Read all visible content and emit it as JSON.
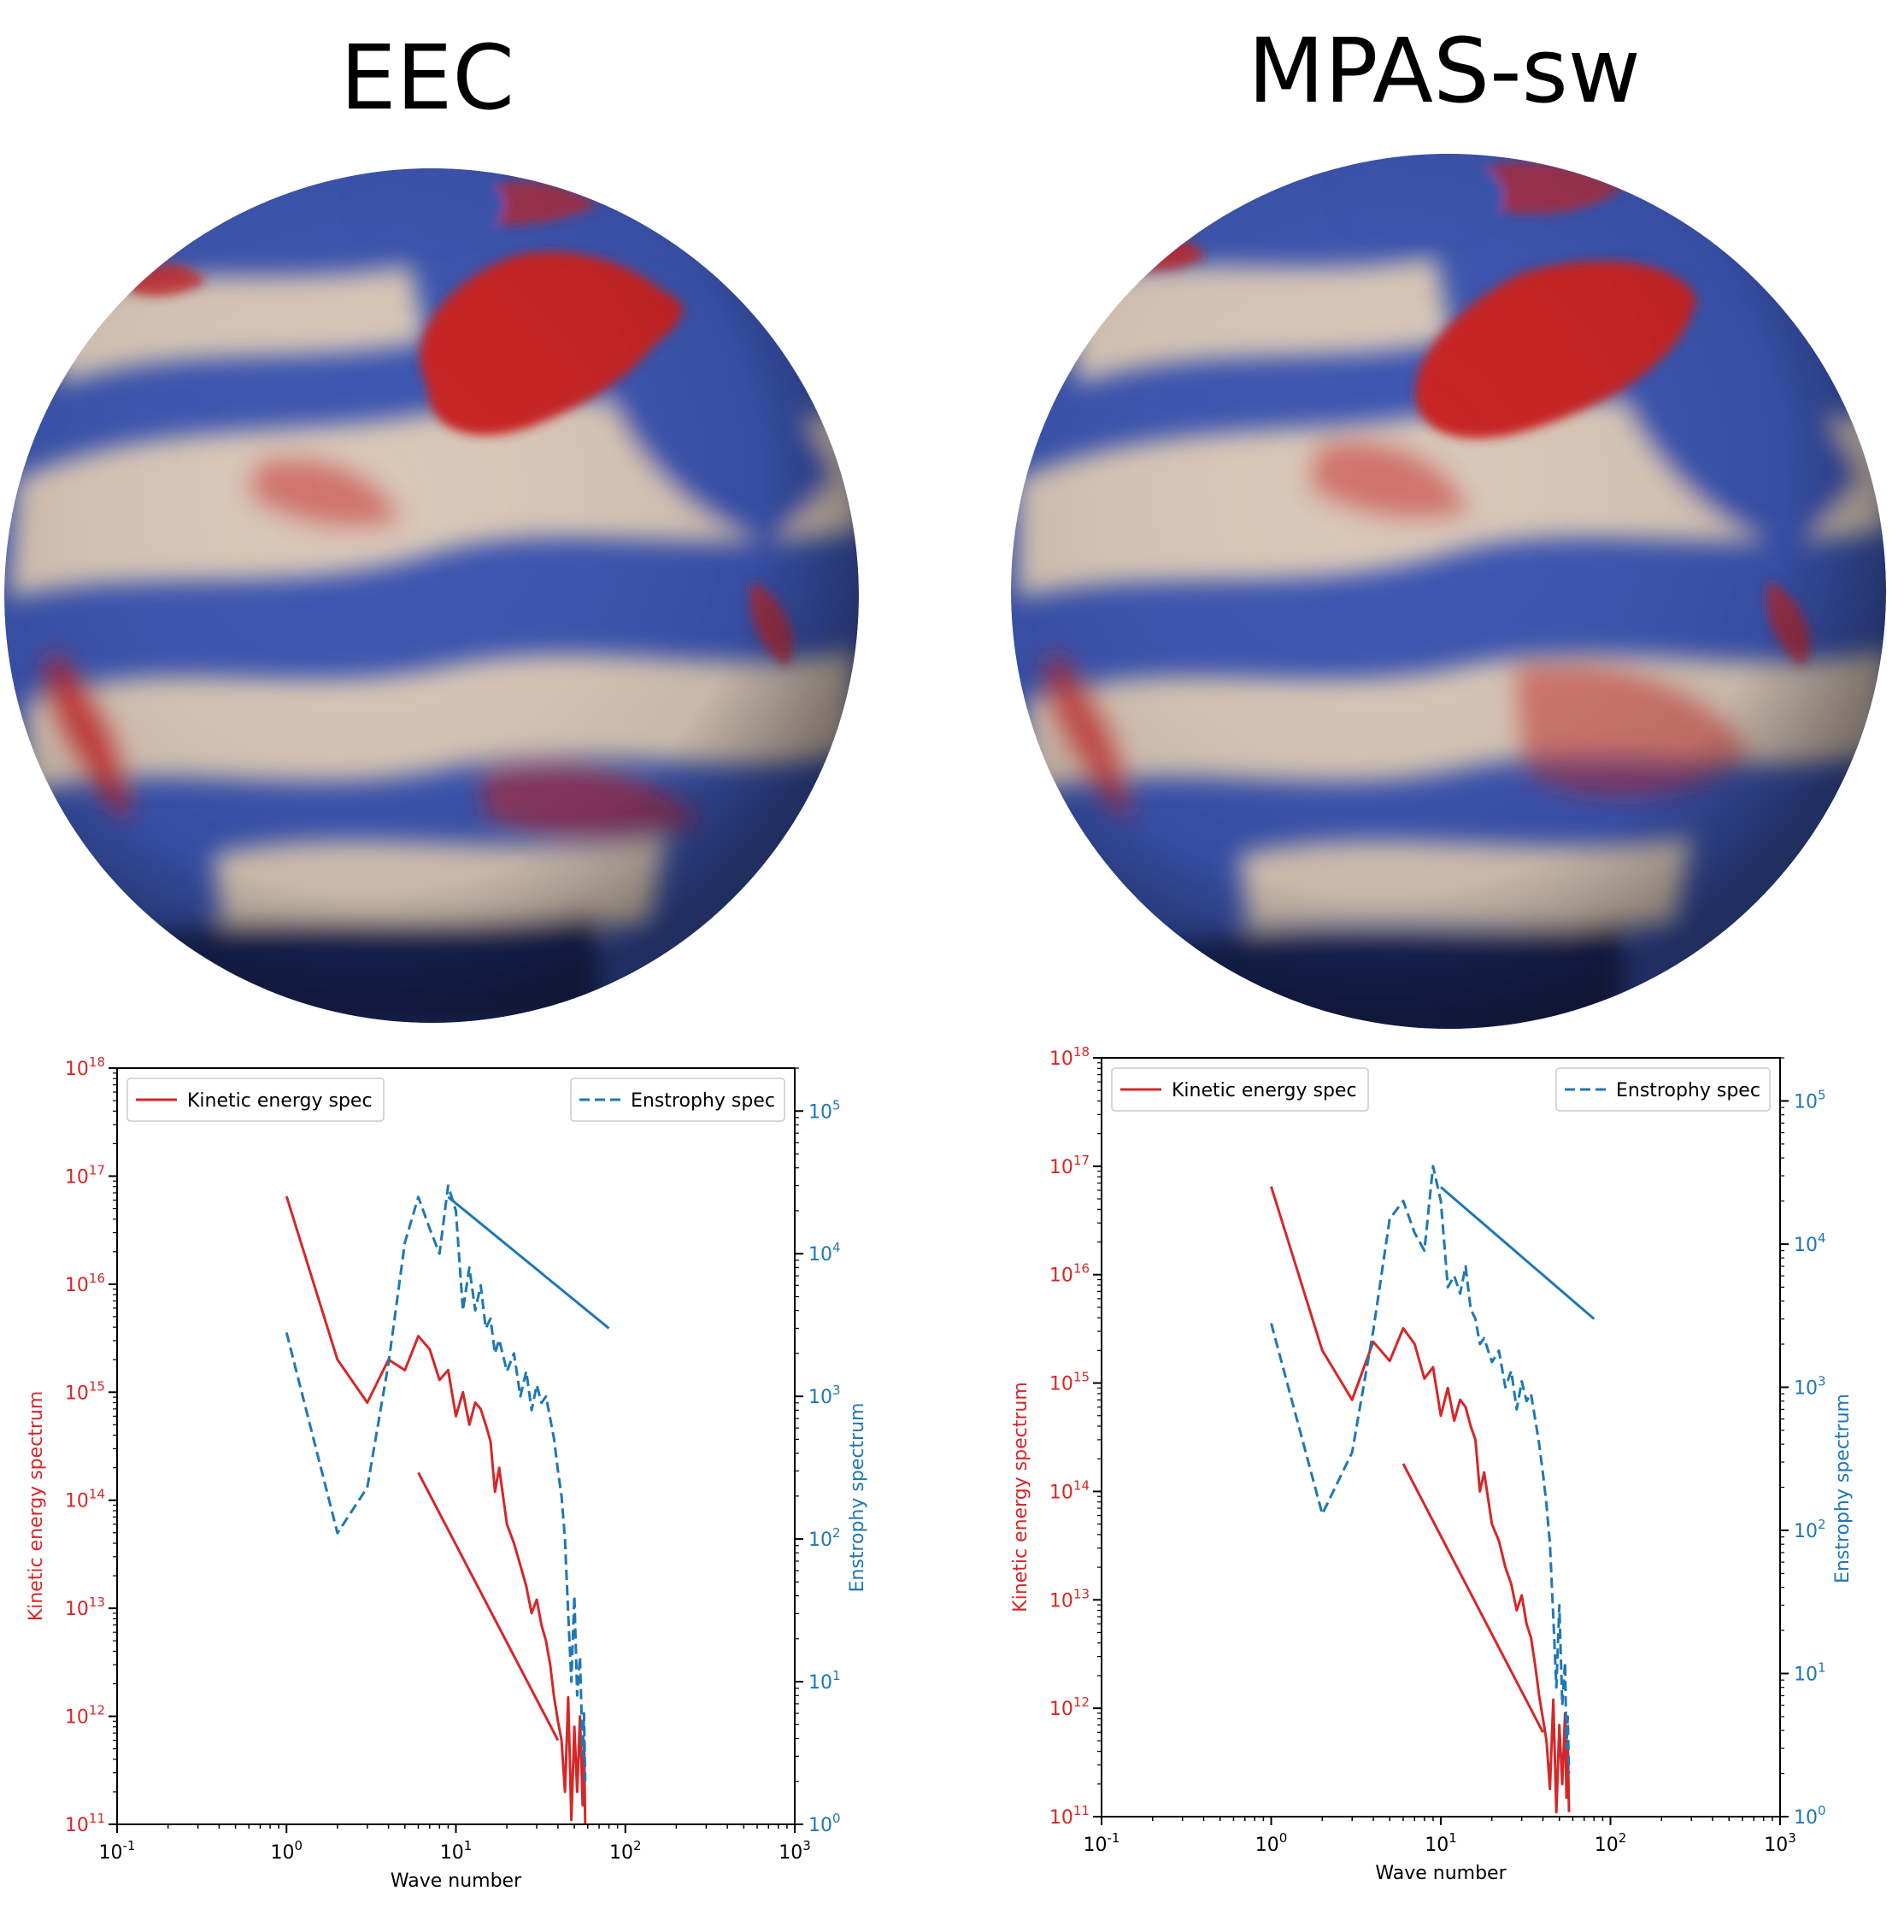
{
  "panels": [
    {
      "title": "EEC",
      "sphere_colors": {
        "base": "#3b54b0",
        "dark": "#1b2a63",
        "light": "#d9c7b8",
        "warm": "#c82222"
      },
      "chart_data": {
        "type": "line",
        "xlabel": "Wave number",
        "ylabel_left": "Kinetic energy spectrum",
        "ylabel_right": "Enstrophy spectrum",
        "xscale": "log",
        "yscale_left": "log",
        "yscale_right": "log",
        "xlim": [
          0.1,
          1000
        ],
        "ylim_left": [
          100000000000.0,
          1e+18
        ],
        "ylim_right": [
          1,
          200000
        ],
        "x_ticks": [
          "10^-1",
          "10^0",
          "10^1",
          "10^2",
          "10^3"
        ],
        "y_ticks_left": [
          "10^11",
          "10^12",
          "10^13",
          "10^14",
          "10^15",
          "10^16",
          "10^17",
          "10^18"
        ],
        "y_ticks_right": [
          "10^0",
          "10^1",
          "10^2",
          "10^3",
          "10^4",
          "10^5"
        ],
        "legend": [
          {
            "label": "Kinetic energy spec",
            "style": "solid",
            "color": "#d62728",
            "position": "upper-left"
          },
          {
            "label": "Enstrophy spec",
            "style": "dashed",
            "color": "#1f77b4",
            "position": "upper-right"
          }
        ],
        "series": [
          {
            "name": "Kinetic energy spec",
            "axis": "left",
            "color": "#d62728",
            "style": "solid",
            "x": [
              1,
              2,
              3,
              4,
              5,
              6,
              7,
              8,
              9,
              10,
              11,
              12,
              13,
              14,
              15,
              16,
              17,
              18,
              20,
              22,
              24,
              26,
              28,
              30,
              32,
              34,
              36,
              38,
              40,
              42,
              44,
              46,
              48,
              50,
              52,
              54,
              56,
              57,
              58
            ],
            "y": [
              6.5e+16,
              2000000000000000.0,
              800000000000000.0,
              2000000000000000.0,
              1600000000000000.0,
              3300000000000000.0,
              2500000000000000.0,
              1300000000000000.0,
              1600000000000000.0,
              600000000000000.0,
              1000000000000000.0,
              500000000000000.0,
              800000000000000.0,
              700000000000000.0,
              500000000000000.0,
              350000000000000.0,
              120000000000000.0,
              200000000000000.0,
              60000000000000.0,
              40000000000000.0,
              25000000000000.0,
              16000000000000.0,
              9000000000000.0,
              12000000000000.0,
              7000000000000.0,
              5000000000000.0,
              3000000000000.0,
              1500000000000.0,
              900000000000.0,
              600000000000.0,
              200000000000.0,
              1500000000000.0,
              110000000000.0,
              800000000000.0,
              200000000000.0,
              1000000000000.0,
              150000000000.0,
              600000000000.0,
              100000000000.0
            ]
          },
          {
            "name": "Enstrophy spec",
            "axis": "right",
            "color": "#1f77b4",
            "style": "dashed",
            "x": [
              1,
              2,
              3,
              4,
              5,
              6,
              7,
              8,
              9,
              10,
              11,
              12,
              13,
              14,
              15,
              16,
              17,
              18,
              20,
              22,
              24,
              26,
              28,
              30,
              32,
              34,
              36,
              38,
              40,
              42,
              44,
              46,
              48,
              50,
              52,
              54,
              56,
              57,
              58
            ],
            "y": [
              2800,
              110,
              230,
              1700,
              12000,
              25000,
              15000,
              10000,
              30000,
              20000,
              4000,
              8000,
              4000,
              6000,
              3000,
              3500,
              2000,
              2500,
              1500,
              2000,
              1000,
              1500,
              800,
              1200,
              900,
              1000,
              700,
              500,
              300,
              200,
              100,
              30,
              10,
              40,
              8,
              15,
              3,
              6,
              2
            ]
          },
          {
            "axis": "left",
            "color": "#d62728",
            "style": "solid",
            "x": [
              6,
              40
            ],
            "y": [
              180000000000000.0,
              600000000000.0
            ]
          },
          {
            "axis": "right",
            "color": "#1f77b4",
            "style": "solid",
            "x": [
              9,
              80
            ],
            "y": [
              25000,
              3000
            ]
          }
        ]
      }
    },
    {
      "title": "MPAS-sw",
      "sphere_colors": {
        "base": "#3b54b0",
        "dark": "#1b2a63",
        "light": "#d9c7b8",
        "warm": "#c82222"
      },
      "chart_data": {
        "type": "line",
        "xlabel": "Wave number",
        "ylabel_left": "Kinetic energy spectrum",
        "ylabel_right": "Enstrophy spectrum",
        "xscale": "log",
        "yscale_left": "log",
        "yscale_right": "log",
        "xlim": [
          0.1,
          1000
        ],
        "ylim_left": [
          100000000000.0,
          1e+18
        ],
        "ylim_right": [
          1,
          200000
        ],
        "x_ticks": [
          "10^-1",
          "10^0",
          "10^1",
          "10^2",
          "10^3"
        ],
        "y_ticks_left": [
          "10^11",
          "10^12",
          "10^13",
          "10^14",
          "10^15",
          "10^16",
          "10^17",
          "10^18"
        ],
        "y_ticks_right": [
          "10^0",
          "10^1",
          "10^2",
          "10^3",
          "10^4",
          "10^5"
        ],
        "legend": [
          {
            "label": "Kinetic energy spec",
            "style": "solid",
            "color": "#d62728",
            "position": "upper-left"
          },
          {
            "label": "Enstrophy spec",
            "style": "dashed",
            "color": "#1f77b4",
            "position": "upper-right"
          }
        ],
        "series": [
          {
            "name": "Kinetic energy spec",
            "axis": "left",
            "color": "#d62728",
            "style": "solid",
            "x": [
              1,
              2,
              3,
              4,
              5,
              6,
              7,
              8,
              9,
              10,
              11,
              12,
              13,
              14,
              15,
              16,
              17,
              18,
              20,
              22,
              24,
              26,
              28,
              30,
              32,
              34,
              36,
              38,
              40,
              42,
              44,
              46,
              48,
              50,
              52,
              54,
              55,
              56,
              57
            ],
            "y": [
              6.5e+16,
              2000000000000000.0,
              700000000000000.0,
              2400000000000000.0,
              1600000000000000.0,
              3200000000000000.0,
              2300000000000000.0,
              1100000000000000.0,
              1400000000000000.0,
              500000000000000.0,
              900000000000000.0,
              450000000000000.0,
              700000000000000.0,
              600000000000000.0,
              400000000000000.0,
              300000000000000.0,
              100000000000000.0,
              150000000000000.0,
              50000000000000.0,
              35000000000000.0,
              20000000000000.0,
              14000000000000.0,
              8000000000000.0,
              11000000000000.0,
              6000000000000.0,
              4500000000000.0,
              2500000000000.0,
              1300000000000.0,
              800000000000.0,
              500000000000.0,
              180000000000.0,
              1200000000000.0,
              110000000000.0,
              700000000000.0,
              200000000000.0,
              900000000000.0,
              150000000000.0,
              500000000000.0,
              110000000000.0
            ]
          },
          {
            "name": "Enstrophy spec",
            "axis": "right",
            "color": "#1f77b4",
            "style": "dashed",
            "x": [
              1,
              2,
              3,
              4,
              5,
              6,
              7,
              8,
              9,
              10,
              11,
              12,
              13,
              14,
              15,
              16,
              17,
              18,
              20,
              22,
              24,
              26,
              28,
              30,
              32,
              34,
              36,
              38,
              40,
              42,
              44,
              46,
              48,
              50,
              52,
              54,
              55,
              56,
              57
            ],
            "y": [
              2800,
              130,
              350,
              2500,
              15000,
              20000,
              12000,
              9000,
              35000,
              20000,
              5000,
              6000,
              4500,
              7000,
              3500,
              3000,
              2000,
              2200,
              1500,
              1800,
              1000,
              1300,
              700,
              1100,
              800,
              900,
              600,
              400,
              250,
              150,
              80,
              25,
              8,
              30,
              6,
              12,
              3,
              5,
              2
            ]
          },
          {
            "axis": "left",
            "color": "#d62728",
            "style": "solid",
            "x": [
              6,
              40
            ],
            "y": [
              180000000000000.0,
              600000000000.0
            ]
          },
          {
            "axis": "right",
            "color": "#1f77b4",
            "style": "solid",
            "x": [
              10,
              80
            ],
            "y": [
              25000,
              3000
            ]
          }
        ]
      }
    }
  ]
}
